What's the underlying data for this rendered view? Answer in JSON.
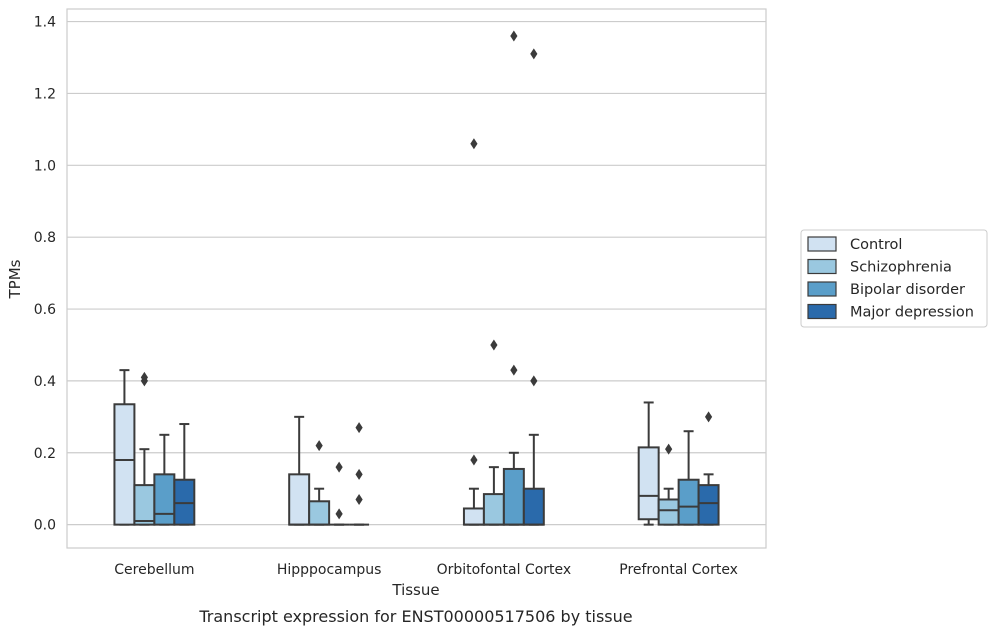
{
  "chart_data": {
    "type": "box",
    "xlabel": "Tissue",
    "ylabel": "TPMs",
    "caption": "Transcript expression for ENST00000517506 by tissue",
    "ylim": [
      -0.065,
      1.435
    ],
    "yticks": [
      "0.0",
      "0.2",
      "0.4",
      "0.6",
      "0.8",
      "1.0",
      "1.2",
      "1.4"
    ],
    "grid": true,
    "legend_position": "right",
    "categories": [
      "Cerebellum",
      "Hipppocampus",
      "Orbitofontal Cortex",
      "Prefrontal Cortex"
    ],
    "series": [
      {
        "name": "Control",
        "color": "#d1e2f2",
        "boxes": [
          {
            "whisker_low": 0.0,
            "q1": 0.0,
            "median": 0.18,
            "q3": 0.335,
            "whisker_high": 0.43,
            "outliers": []
          },
          {
            "whisker_low": 0.0,
            "q1": 0.0,
            "median": 0.0,
            "q3": 0.14,
            "whisker_high": 0.3,
            "outliers": []
          },
          {
            "whisker_low": 0.0,
            "q1": 0.0,
            "median": 0.0,
            "q3": 0.045,
            "whisker_high": 0.1,
            "outliers": [
              0.18,
              1.06
            ]
          },
          {
            "whisker_low": 0.0,
            "q1": 0.015,
            "median": 0.08,
            "q3": 0.215,
            "whisker_high": 0.34,
            "outliers": []
          }
        ]
      },
      {
        "name": "Schizophrenia",
        "color": "#9ac8e0",
        "boxes": [
          {
            "whisker_low": 0.0,
            "q1": 0.0,
            "median": 0.01,
            "q3": 0.11,
            "whisker_high": 0.21,
            "outliers": [
              0.4,
              0.41
            ]
          },
          {
            "whisker_low": 0.0,
            "q1": 0.0,
            "median": 0.0,
            "q3": 0.065,
            "whisker_high": 0.1,
            "outliers": [
              0.22
            ]
          },
          {
            "whisker_low": 0.0,
            "q1": 0.0,
            "median": 0.0,
            "q3": 0.085,
            "whisker_high": 0.16,
            "outliers": [
              0.5
            ]
          },
          {
            "whisker_low": 0.0,
            "q1": 0.0,
            "median": 0.04,
            "q3": 0.07,
            "whisker_high": 0.1,
            "outliers": [
              0.21
            ]
          }
        ]
      },
      {
        "name": "Bipolar disorder",
        "color": "#5a9ec9",
        "boxes": [
          {
            "whisker_low": 0.0,
            "q1": 0.0,
            "median": 0.03,
            "q3": 0.14,
            "whisker_high": 0.25,
            "outliers": []
          },
          {
            "whisker_low": 0.0,
            "q1": 0.0,
            "median": 0.0,
            "q3": 0.0,
            "whisker_high": 0.0,
            "outliers": [
              0.03,
              0.16
            ]
          },
          {
            "whisker_low": 0.0,
            "q1": 0.0,
            "median": 0.0,
            "q3": 0.155,
            "whisker_high": 0.2,
            "outliers": [
              0.43,
              1.36
            ]
          },
          {
            "whisker_low": 0.0,
            "q1": 0.0,
            "median": 0.05,
            "q3": 0.125,
            "whisker_high": 0.26,
            "outliers": []
          }
        ]
      },
      {
        "name": "Major depression",
        "color": "#2a6aab",
        "boxes": [
          {
            "whisker_low": 0.0,
            "q1": 0.0,
            "median": 0.06,
            "q3": 0.125,
            "whisker_high": 0.28,
            "outliers": []
          },
          {
            "whisker_low": 0.0,
            "q1": 0.0,
            "median": 0.0,
            "q3": 0.0,
            "whisker_high": 0.0,
            "outliers": [
              0.07,
              0.14,
              0.27
            ]
          },
          {
            "whisker_low": 0.0,
            "q1": 0.0,
            "median": 0.0,
            "q3": 0.1,
            "whisker_high": 0.25,
            "outliers": [
              0.4,
              1.31
            ]
          },
          {
            "whisker_low": 0.0,
            "q1": 0.0,
            "median": 0.06,
            "q3": 0.11,
            "whisker_high": 0.14,
            "outliers": [
              0.3
            ]
          }
        ]
      }
    ]
  }
}
